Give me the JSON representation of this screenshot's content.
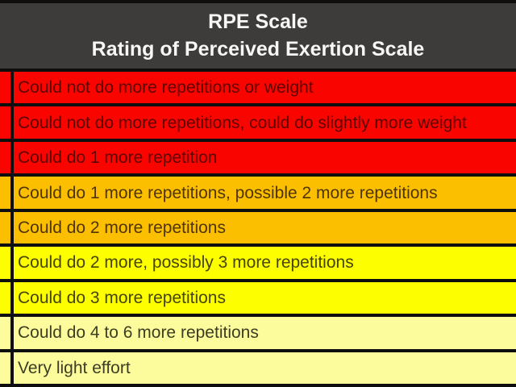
{
  "header": {
    "title": "RPE Scale",
    "subtitle": "Rating of Perceived Exertion Scale"
  },
  "colors": {
    "frame_grid": "#0e0e0e",
    "header_bg": "#3d3c3a",
    "header_text": "#f8f7f5",
    "red": "#fa0400",
    "orange": "#fcbf00",
    "yellow": "#fdfe00",
    "cream": "#fdfc9d"
  },
  "chart_data": {
    "type": "table",
    "title": "RPE Scale",
    "subtitle": "Rating of Perceived Exertion Scale",
    "rows": [
      {
        "label": "Could not do more repetitions or weight",
        "color": "#fa0400",
        "text_color": "#5e0300",
        "color_name": "red"
      },
      {
        "label": "Could not do more repetitions, could do slightly more weight",
        "color": "#fa0400",
        "text_color": "#5e0300",
        "color_name": "red"
      },
      {
        "label": "Could do 1 more repetition",
        "color": "#fa0400",
        "text_color": "#5e0300",
        "color_name": "red"
      },
      {
        "label": "Could do 1 more repetitions, possible 2 more repetitions",
        "color": "#fcbf00",
        "text_color": "#4f3500",
        "color_name": "orange"
      },
      {
        "label": "Could do 2 more repetitions",
        "color": "#fcbf00",
        "text_color": "#4f3500",
        "color_name": "orange"
      },
      {
        "label": "Could do 2 more, possibly 3 more repetitions",
        "color": "#fdfe00",
        "text_color": "#454500",
        "color_name": "yellow"
      },
      {
        "label": "Could do 3 more repetitions",
        "color": "#fdfe00",
        "text_color": "#454500",
        "color_name": "yellow"
      },
      {
        "label": "Could do 4 to 6 more repetitions",
        "color": "#fdfc9d",
        "text_color": "#3c3d22",
        "color_name": "cream"
      },
      {
        "label": "Very light effort",
        "color": "#fdfc9d",
        "text_color": "#3c3d22",
        "color_name": "cream"
      }
    ]
  }
}
